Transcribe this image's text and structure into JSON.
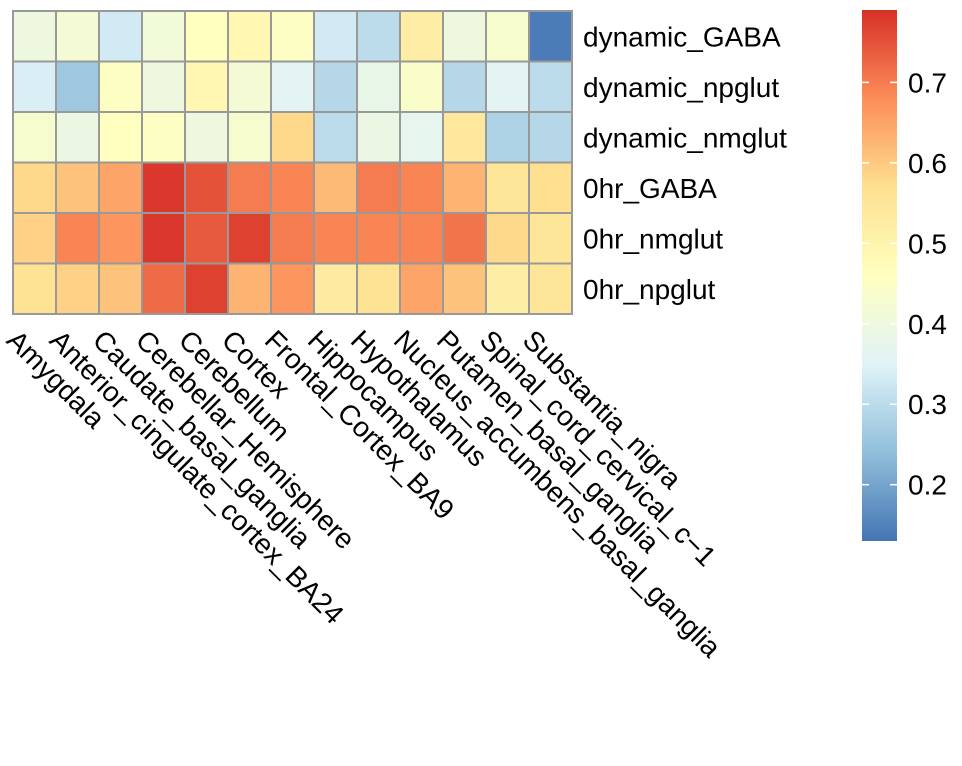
{
  "chart_data": {
    "type": "heatmap",
    "title": "",
    "columns": [
      "Amygdala",
      "Anterior_cingulate_cortex_BA24",
      "Caudate_basal_ganglia",
      "Cerebellar_Hemisphere",
      "Cerebellum",
      "Cortex",
      "Frontal_Cortex_BA9",
      "Hippocampus",
      "Hypothalamus",
      "Nucleus_accumbens_basal_ganglia",
      "Putamen_basal_ganglia",
      "Spinal_cord_cervical_c−1",
      "Substantia_nigra"
    ],
    "rows": [
      "dynamic_GABA",
      "dynamic_npglut",
      "dynamic_nmglut",
      "0hr_GABA",
      "0hr_nmglut",
      "0hr_npglut"
    ],
    "values": [
      [
        0.4,
        0.42,
        0.33,
        0.41,
        0.46,
        0.49,
        0.45,
        0.33,
        0.3,
        0.52,
        0.4,
        0.43,
        0.14
      ],
      [
        0.34,
        0.26,
        0.45,
        0.4,
        0.49,
        0.42,
        0.36,
        0.29,
        0.38,
        0.44,
        0.29,
        0.36,
        0.3
      ],
      [
        0.43,
        0.39,
        0.46,
        0.45,
        0.4,
        0.43,
        0.58,
        0.3,
        0.39,
        0.37,
        0.54,
        0.28,
        0.29
      ],
      [
        0.58,
        0.61,
        0.65,
        0.78,
        0.75,
        0.7,
        0.69,
        0.62,
        0.7,
        0.69,
        0.63,
        0.55,
        0.57
      ],
      [
        0.59,
        0.69,
        0.67,
        0.78,
        0.74,
        0.77,
        0.7,
        0.69,
        0.69,
        0.69,
        0.71,
        0.58,
        0.55
      ],
      [
        0.56,
        0.59,
        0.61,
        0.72,
        0.77,
        0.63,
        0.67,
        0.53,
        0.56,
        0.65,
        0.61,
        0.52,
        0.55
      ]
    ],
    "legend": {
      "position": "right",
      "range": [
        0.13,
        0.79
      ],
      "ticks": [
        "0.7",
        "0.6",
        "0.5",
        "0.4",
        "0.3",
        "0.2"
      ],
      "tick_values": [
        0.7,
        0.6,
        0.5,
        0.4,
        0.3,
        0.2
      ]
    },
    "colormap": [
      "#4575b4",
      "#91bfdb",
      "#e0f3f8",
      "#ffffbf",
      "#fee090",
      "#fc8d59",
      "#d73027"
    ],
    "grid_color": "#999999"
  }
}
